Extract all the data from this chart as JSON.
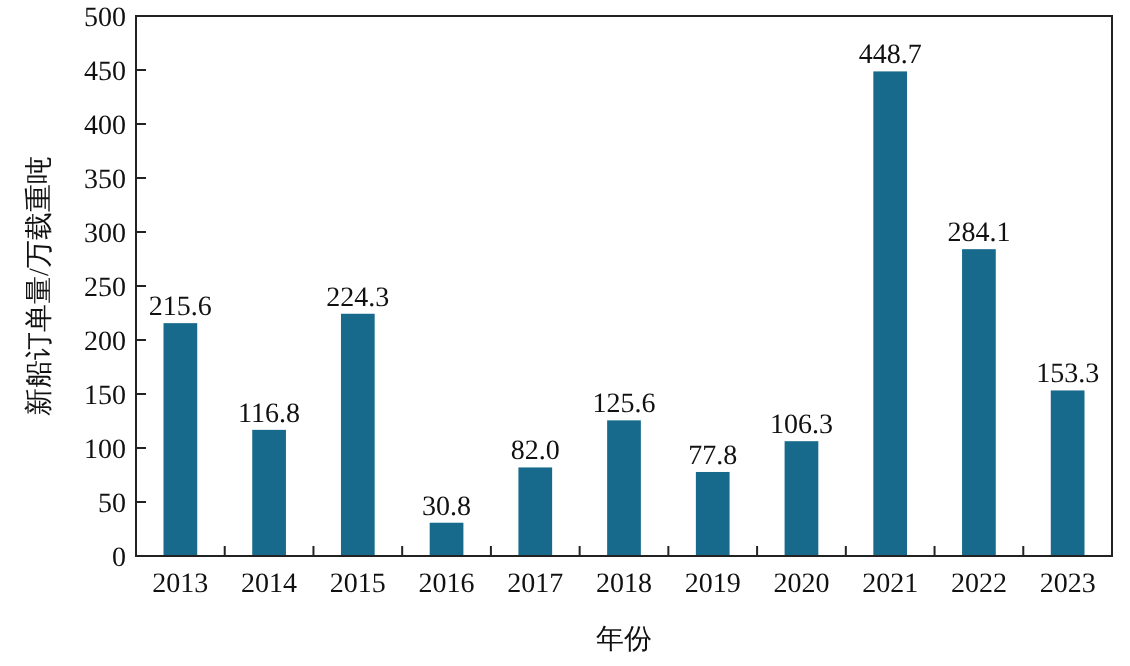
{
  "chart_data": {
    "type": "bar",
    "xlabel": "年份",
    "ylabel": "新船订单量/万载重吨",
    "categories": [
      "2013",
      "2014",
      "2015",
      "2016",
      "2017",
      "2018",
      "2019",
      "2020",
      "2021",
      "2022",
      "2023"
    ],
    "values": [
      215.6,
      116.8,
      224.3,
      30.8,
      82.0,
      125.6,
      77.8,
      106.3,
      448.7,
      284.1,
      153.3
    ],
    "value_labels": [
      "215.6",
      "116.8",
      "224.3",
      "30.8",
      "82.0",
      "125.6",
      "77.8",
      "106.3",
      "448.7",
      "284.1",
      "153.3"
    ],
    "color": "#176a8c",
    "ylim": [
      0,
      500
    ],
    "yticks": [
      0,
      50,
      100,
      150,
      200,
      250,
      300,
      350,
      400,
      450,
      500
    ]
  }
}
